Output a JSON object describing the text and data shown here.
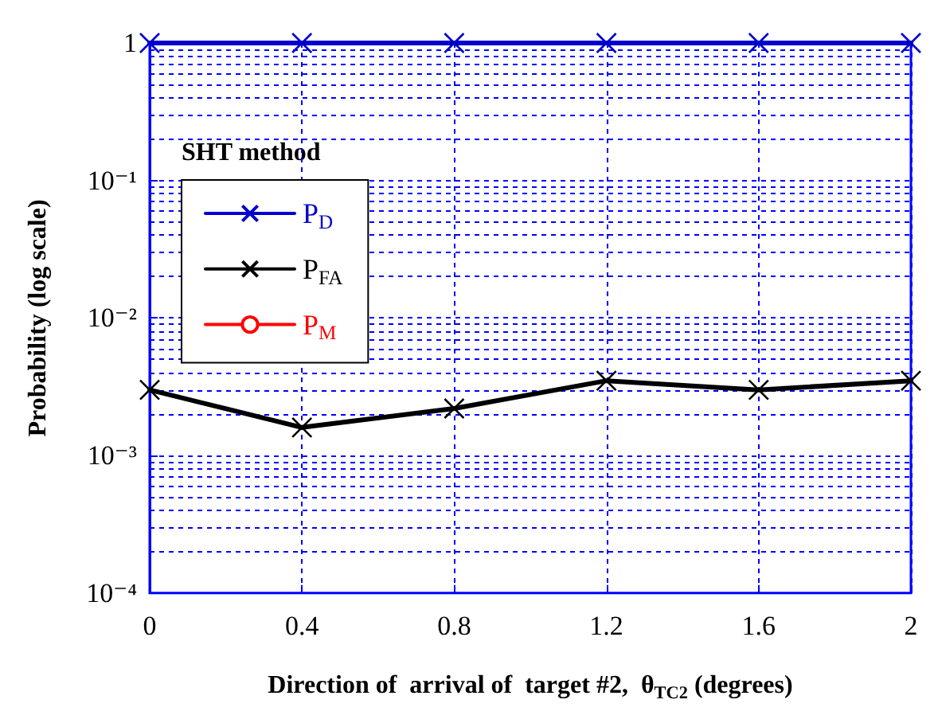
{
  "chart_data": {
    "type": "line",
    "xlabel": "Direction of  arrival of  target #2,  θ$_{TC2}$ (degrees)",
    "ylabel": "Probability (log scale)",
    "legend_title": "SHT method",
    "x": [
      0,
      0.4,
      0.8,
      1.2,
      1.6,
      2
    ],
    "series": [
      {
        "name": "P$_{D}$",
        "color": "#0000cc",
        "marker": "cross",
        "values": [
          1,
          1,
          1,
          1,
          1,
          1
        ]
      },
      {
        "name": "P$_{FA}$",
        "color": "#000000",
        "marker": "cross",
        "values": [
          0.003,
          0.0016,
          0.0022,
          0.0035,
          0.003,
          0.0035
        ]
      },
      {
        "name": "P$_{M}$",
        "color": "#ff0000",
        "marker": "circle",
        "values": [
          null,
          null,
          null,
          null,
          null,
          null
        ]
      }
    ],
    "xlim": [
      0,
      2
    ],
    "xticks": [
      0,
      0.4,
      0.8,
      1.2,
      1.6,
      2
    ],
    "ylim": [
      0.0001,
      1
    ],
    "yticks": [
      {
        "value": 0.0001,
        "label": "10⁻⁴"
      },
      {
        "value": 0.001,
        "label": "10⁻³"
      },
      {
        "value": 0.01,
        "label": "10⁻²"
      },
      {
        "value": 0.1,
        "label": "10⁻¹"
      },
      1
    ],
    "log": "y",
    "grid": true,
    "legend": "top left",
    "line_style": "solid"
  }
}
